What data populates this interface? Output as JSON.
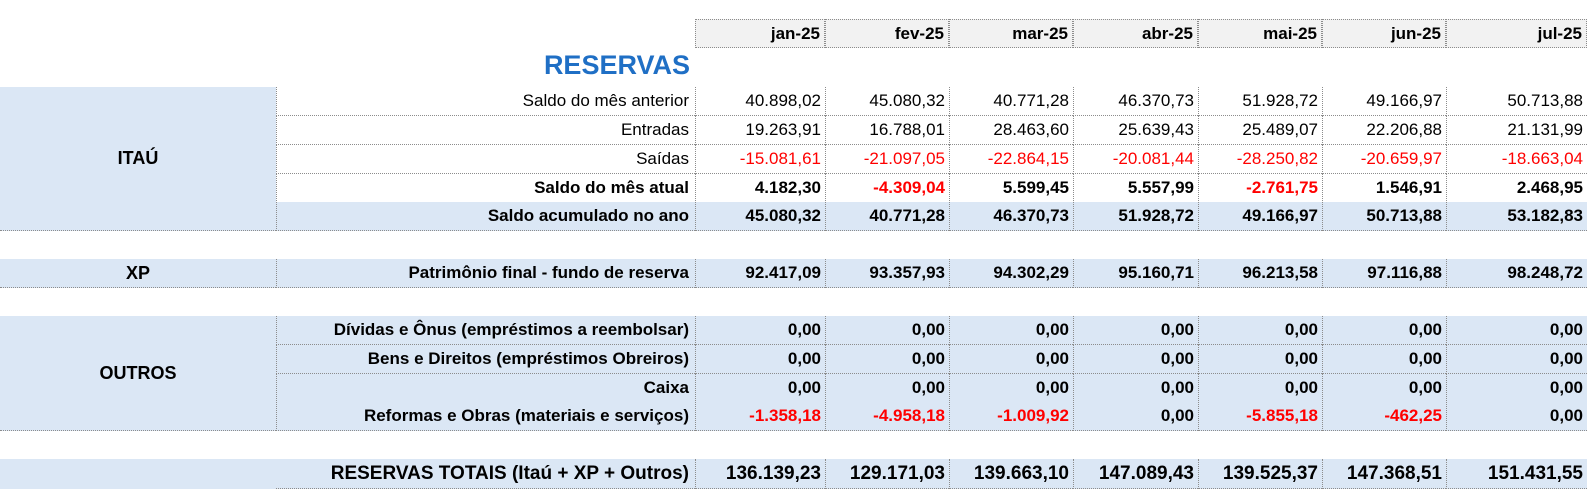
{
  "title": "RESERVAS",
  "months": [
    "jan-25",
    "fev-25",
    "mar-25",
    "abr-25",
    "mai-25",
    "jun-25",
    "jul-25"
  ],
  "groups": {
    "itau": "ITAÚ",
    "xp": "XP",
    "outros": "OUTROS"
  },
  "rows": [
    {
      "label": "Saldo do mês anterior",
      "group": "itau",
      "bold": false,
      "band": false,
      "values": [
        "40.898,02",
        "45.080,32",
        "40.771,28",
        "46.370,73",
        "51.928,72",
        "49.166,97",
        "50.713,88"
      ]
    },
    {
      "label": "Entradas",
      "group": "itau",
      "bold": false,
      "band": false,
      "values": [
        "19.263,91",
        "16.788,01",
        "28.463,60",
        "25.639,43",
        "25.489,07",
        "22.206,88",
        "21.131,99"
      ]
    },
    {
      "label": "Saídas",
      "group": "itau",
      "bold": false,
      "band": false,
      "values": [
        "-15.081,61",
        "-21.097,05",
        "-22.864,15",
        "-20.081,44",
        "-28.250,82",
        "-20.659,97",
        "-18.663,04"
      ]
    },
    {
      "label": "Saldo do mês atual",
      "group": "itau",
      "bold": true,
      "band": false,
      "values": [
        "4.182,30",
        "-4.309,04",
        "5.599,45",
        "5.557,99",
        "-2.761,75",
        "1.546,91",
        "2.468,95"
      ]
    },
    {
      "label": "Saldo acumulado no ano",
      "group": "itau",
      "bold": true,
      "band": true,
      "values": [
        "45.080,32",
        "40.771,28",
        "46.370,73",
        "51.928,72",
        "49.166,97",
        "50.713,88",
        "53.182,83"
      ]
    },
    {
      "label": "Patrimônio final - fundo de reserva",
      "group": "xp",
      "bold": true,
      "band": true,
      "values": [
        "92.417,09",
        "93.357,93",
        "94.302,29",
        "95.160,71",
        "96.213,58",
        "97.116,88",
        "98.248,72"
      ]
    },
    {
      "label": "Dívidas e Ônus (empréstimos a reembolsar)",
      "group": "outros",
      "bold": true,
      "band": true,
      "values": [
        "0,00",
        "0,00",
        "0,00",
        "0,00",
        "0,00",
        "0,00",
        "0,00"
      ]
    },
    {
      "label": "Bens e Direitos (empréstimos Obreiros)",
      "group": "outros",
      "bold": true,
      "band": true,
      "values": [
        "0,00",
        "0,00",
        "0,00",
        "0,00",
        "0,00",
        "0,00",
        "0,00"
      ]
    },
    {
      "label": "Caixa",
      "group": "outros",
      "bold": true,
      "band": true,
      "values": [
        "0,00",
        "0,00",
        "0,00",
        "0,00",
        "0,00",
        "0,00",
        "0,00"
      ]
    },
    {
      "label": "Reformas e Obras (materiais e serviços)",
      "group": "outros",
      "bold": true,
      "band": true,
      "values": [
        "-1.358,18",
        "-4.958,18",
        "-1.009,92",
        "0,00",
        "-5.855,18",
        "-462,25",
        "0,00"
      ]
    }
  ],
  "total": {
    "label": "RESERVAS TOTAIS (Itaú + XP + Outros)",
    "values": [
      "136.139,23",
      "129.171,03",
      "139.663,10",
      "147.089,43",
      "139.525,37",
      "147.368,51",
      "151.431,55"
    ]
  }
}
